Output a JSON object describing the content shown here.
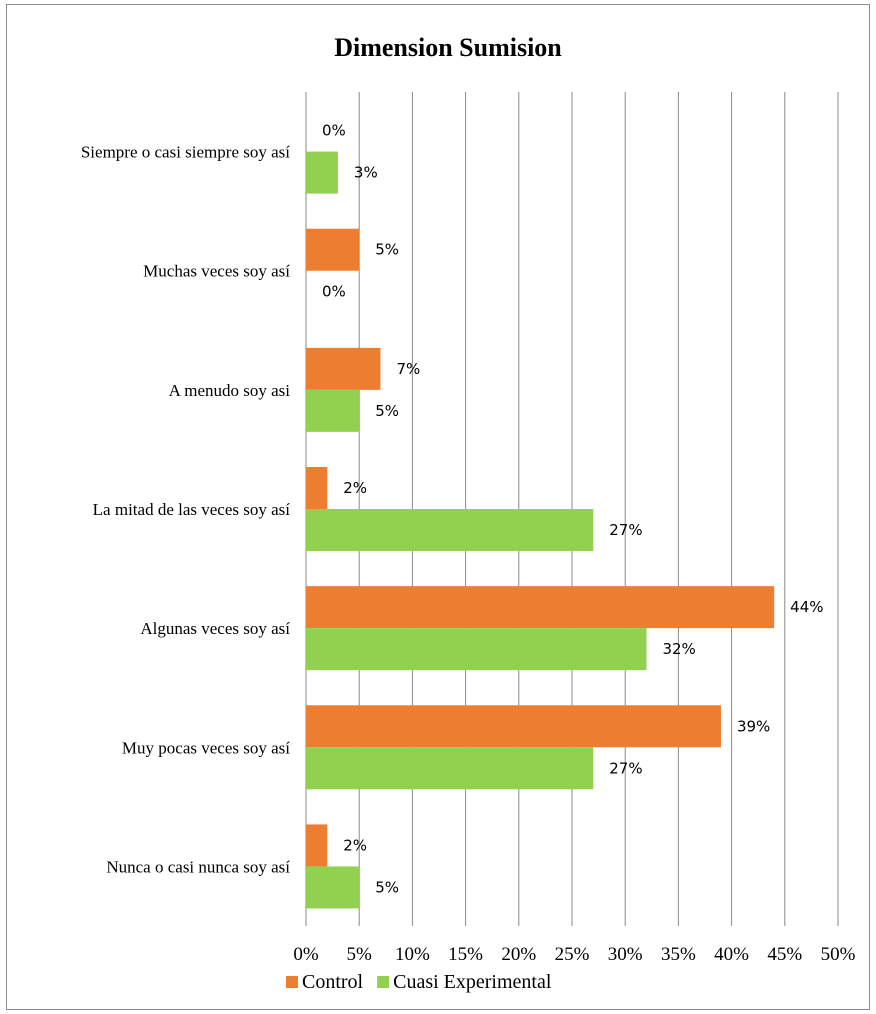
{
  "chart_data": {
    "type": "bar",
    "orientation": "horizontal",
    "title": "Dimension Sumision",
    "xlabel": "",
    "ylabel": "",
    "categories": [
      "Siempre o casi siempre soy así",
      "Muchas veces soy así",
      "A menudo soy asi",
      "La mitad de las veces soy así",
      "Algunas veces soy así",
      "Muy pocas veces soy así",
      "Nunca o casi nunca soy así"
    ],
    "series": [
      {
        "name": "Control",
        "color": "#ED7D31",
        "values": [
          0,
          5,
          7,
          2,
          44,
          39,
          2
        ],
        "labels": [
          "0%",
          "5%",
          "7%",
          "2%",
          "44%",
          "39%",
          "2%"
        ]
      },
      {
        "name": "Cuasi Experimental",
        "color": "#92D050",
        "values": [
          3,
          0,
          5,
          27,
          32,
          27,
          5
        ],
        "labels": [
          "3%",
          "0%",
          "5%",
          "27%",
          "32%",
          "27%",
          "5%"
        ]
      }
    ],
    "xlim": [
      0,
      50
    ],
    "x_ticks": [
      "0%",
      "5%",
      "10%",
      "15%",
      "20%",
      "25%",
      "30%",
      "35%",
      "40%",
      "45%",
      "50%"
    ],
    "grid": "vertical",
    "legend": "bottom"
  }
}
